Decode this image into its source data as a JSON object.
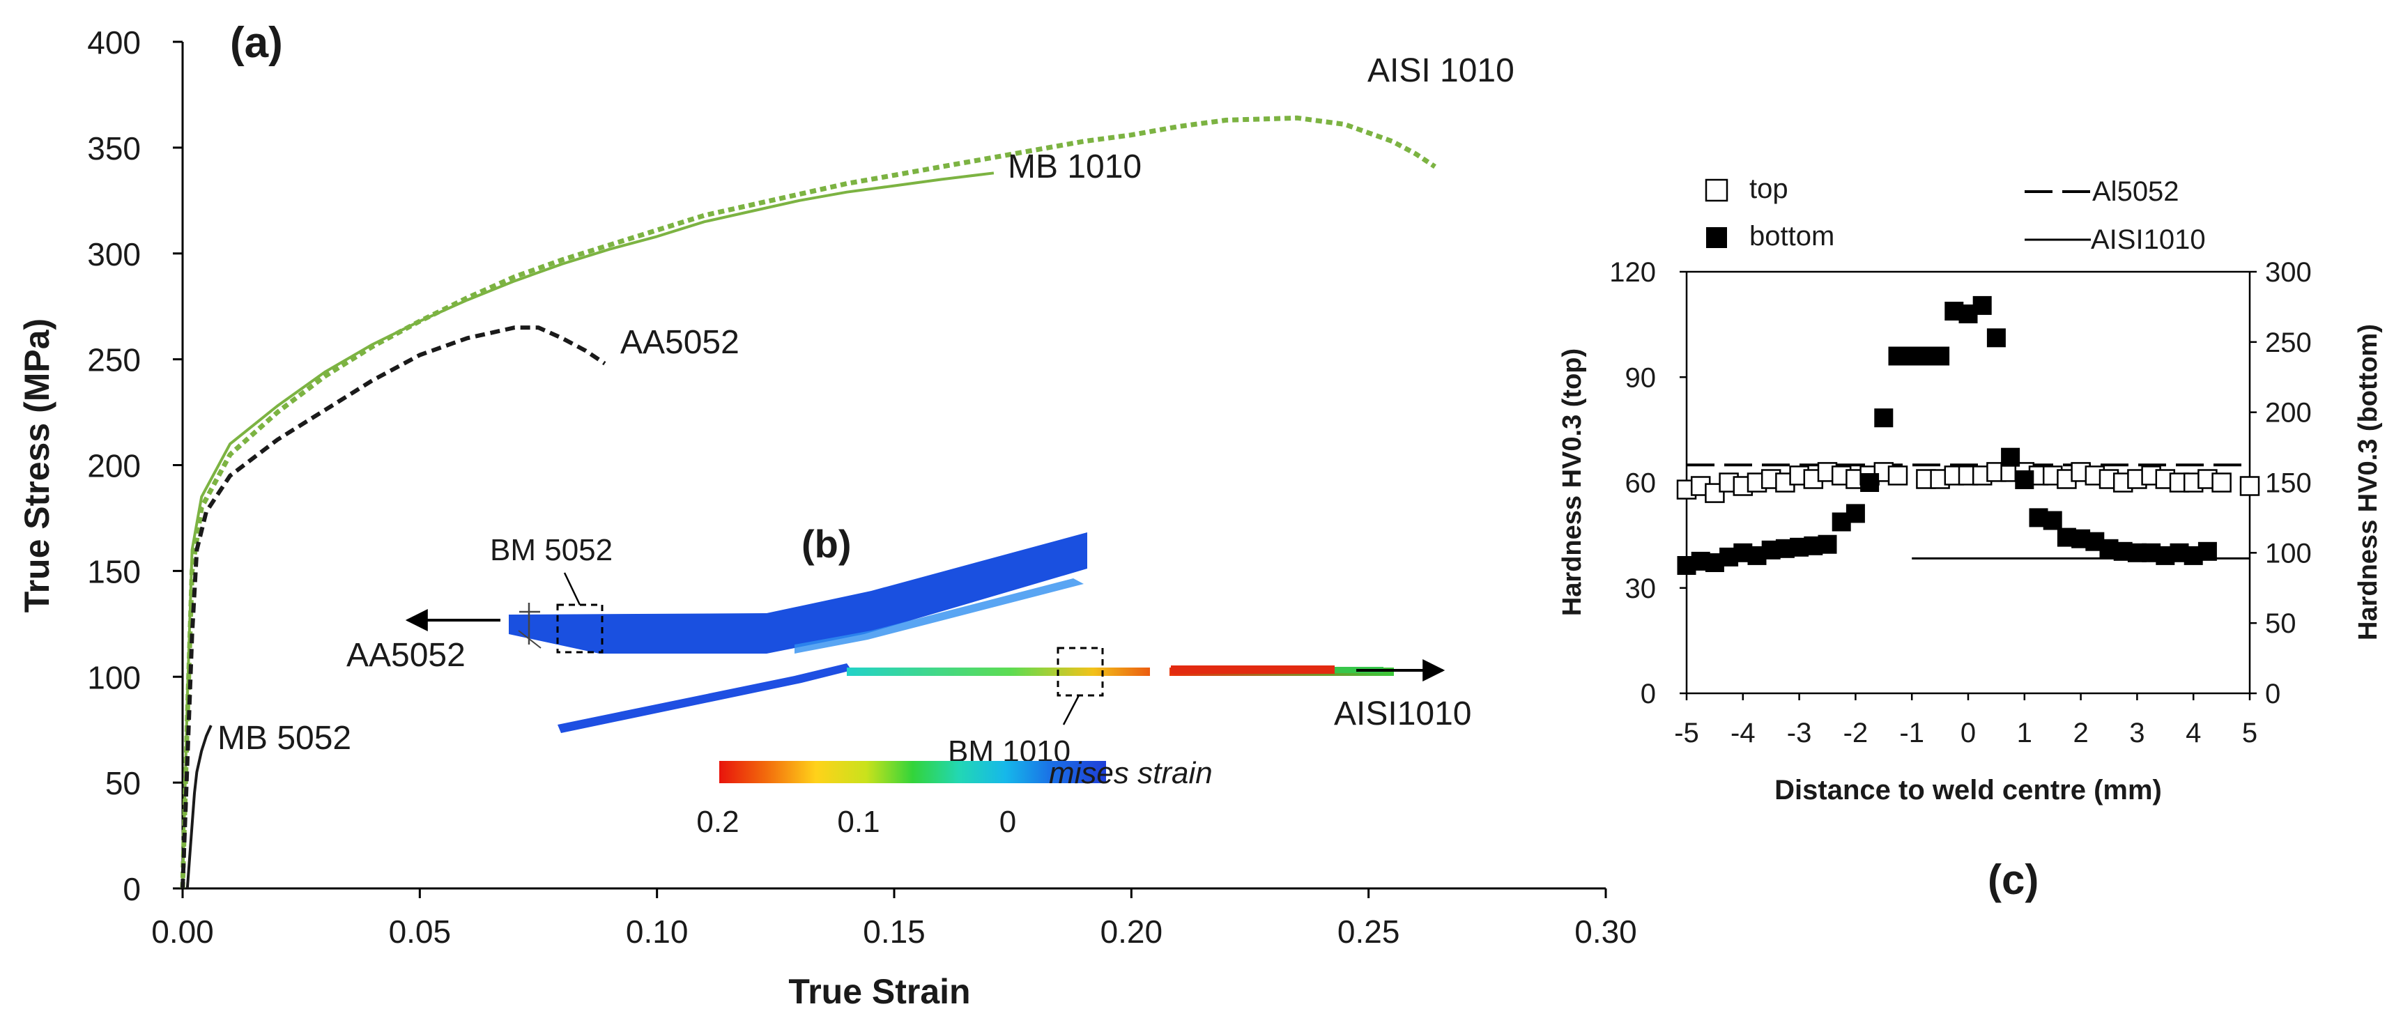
{
  "chart_data": [
    {
      "type": "line",
      "panel_label": "(a)",
      "xlabel": "True Strain",
      "ylabel": "True Stress (MPa)",
      "xlim": [
        0,
        0.3
      ],
      "ylim": [
        0,
        400
      ],
      "x_ticks": [
        "0.00",
        "0.05",
        "0.10",
        "0.15",
        "0.20",
        "0.25",
        "0.30"
      ],
      "y_ticks": [
        "0",
        "50",
        "100",
        "150",
        "200",
        "250",
        "300",
        "350",
        "400"
      ],
      "grid": false,
      "series": [
        {
          "name": "AISI 1010",
          "color": "#7cb342",
          "dash": "dotted",
          "points": [
            [
              0.0,
              0
            ],
            [
              0.001,
              80
            ],
            [
              0.002,
              150
            ],
            [
              0.004,
              180
            ],
            [
              0.01,
              205
            ],
            [
              0.02,
              225
            ],
            [
              0.03,
              242
            ],
            [
              0.04,
              256
            ],
            [
              0.05,
              268
            ],
            [
              0.06,
              279
            ],
            [
              0.07,
              289
            ],
            [
              0.08,
              297
            ],
            [
              0.09,
              304
            ],
            [
              0.1,
              311
            ],
            [
              0.11,
              318
            ],
            [
              0.12,
              323
            ],
            [
              0.13,
              328
            ],
            [
              0.14,
              333
            ],
            [
              0.15,
              337
            ],
            [
              0.16,
              341
            ],
            [
              0.17,
              345
            ],
            [
              0.18,
              349
            ],
            [
              0.19,
              353
            ],
            [
              0.2,
              356
            ],
            [
              0.21,
              360
            ],
            [
              0.22,
              363
            ],
            [
              0.235,
              364
            ],
            [
              0.245,
              361
            ],
            [
              0.255,
              353
            ],
            [
              0.26,
              347
            ],
            [
              0.264,
              341
            ]
          ]
        },
        {
          "name": "MB 1010",
          "color": "#7cb342",
          "dash": "solid",
          "points": [
            [
              0.0,
              0
            ],
            [
              0.001,
              90
            ],
            [
              0.002,
              160
            ],
            [
              0.004,
              185
            ],
            [
              0.01,
              210
            ],
            [
              0.02,
              228
            ],
            [
              0.03,
              244
            ],
            [
              0.04,
              257
            ],
            [
              0.05,
              268
            ],
            [
              0.06,
              278
            ],
            [
              0.07,
              287
            ],
            [
              0.08,
              295
            ],
            [
              0.09,
              302
            ],
            [
              0.1,
              308
            ],
            [
              0.11,
              315
            ],
            [
              0.12,
              320
            ],
            [
              0.13,
              325
            ],
            [
              0.14,
              329
            ],
            [
              0.15,
              332
            ],
            [
              0.16,
              335
            ],
            [
              0.171,
              338
            ]
          ]
        },
        {
          "name": "AA5052",
          "color": "#1a1a1a",
          "dash": "dashed",
          "points": [
            [
              0.0,
              0
            ],
            [
              0.001,
              60
            ],
            [
              0.002,
              120
            ],
            [
              0.003,
              160
            ],
            [
              0.005,
              178
            ],
            [
              0.01,
              195
            ],
            [
              0.02,
              212
            ],
            [
              0.03,
              226
            ],
            [
              0.04,
              240
            ],
            [
              0.05,
              252
            ],
            [
              0.06,
              260
            ],
            [
              0.07,
              265
            ],
            [
              0.075,
              265
            ],
            [
              0.08,
              260
            ],
            [
              0.085,
              254
            ],
            [
              0.089,
              248
            ]
          ]
        },
        {
          "name": "MB 5052",
          "color": "#1a1a1a",
          "dash": "solid",
          "points": [
            [
              0.001,
              0
            ],
            [
              0.0015,
              15
            ],
            [
              0.002,
              30
            ],
            [
              0.0025,
              45
            ],
            [
              0.003,
              55
            ],
            [
              0.004,
              65
            ],
            [
              0.005,
              72
            ],
            [
              0.006,
              77
            ]
          ]
        }
      ],
      "annotations": [
        "AISI 1010",
        "MB 1010",
        "AA5052",
        "MB 5052"
      ]
    },
    {
      "type": "heatmap",
      "panel_label": "(b)",
      "title": "mises strain",
      "colorbar_ticks": [
        "0.2",
        "0.1",
        "0"
      ],
      "colorbar_range": [
        0.2,
        0
      ],
      "labels": [
        "BM 5052",
        "BM 1010",
        "AA5052",
        "AISI1010"
      ]
    },
    {
      "type": "scatter",
      "panel_label": "(c)",
      "xlabel": "Distance to weld centre (mm)",
      "ylabel_left": "Hardness HV0.3 (top)",
      "ylabel_right": "Hardness HV0.3 (bottom)",
      "xlim": [
        -5,
        5
      ],
      "ylim_left": [
        0,
        120
      ],
      "ylim_right": [
        0,
        300
      ],
      "x_ticks": [
        "-5",
        "-4",
        "-3",
        "-2",
        "-1",
        "0",
        "1",
        "2",
        "3",
        "4",
        "5"
      ],
      "y_ticks_left": [
        "0",
        "30",
        "60",
        "90",
        "120"
      ],
      "y_ticks_right": [
        "0",
        "50",
        "100",
        "150",
        "200",
        "250",
        "300"
      ],
      "legend": {
        "top": "top",
        "bottom": "bottom",
        "al": "Al5052",
        "aisi": "AISI1010"
      },
      "series": [
        {
          "name": "top",
          "axis": "left",
          "marker": "open-square",
          "x": [
            -5,
            -4.75,
            -4.5,
            -4.25,
            -4,
            -3.75,
            -3.5,
            -3.25,
            -3,
            -2.75,
            -2.5,
            -2.25,
            -2,
            -1.75,
            -1.5,
            -1.25,
            -0.75,
            -0.5,
            -0.25,
            0,
            0.25,
            0.5,
            0.75,
            1,
            1.25,
            1.5,
            1.75,
            2,
            2.25,
            2.5,
            2.75,
            3,
            3.25,
            3.5,
            3.75,
            4,
            4.25,
            4.5,
            5
          ],
          "y": [
            58,
            59,
            57,
            60,
            59,
            60,
            61,
            60,
            62,
            61,
            63,
            62,
            61,
            62,
            63,
            62,
            61,
            61,
            62,
            62,
            62,
            63,
            63,
            63,
            62,
            62,
            61,
            63,
            62,
            61,
            60,
            61,
            62,
            61,
            60,
            60,
            61,
            60,
            59
          ]
        },
        {
          "name": "bottom",
          "axis": "right",
          "marker": "filled-square",
          "x": [
            -5,
            -4.75,
            -4.5,
            -4.25,
            -4,
            -3.75,
            -3.5,
            -3.25,
            -3,
            -2.75,
            -2.5,
            -2.25,
            -2,
            -1.75,
            -1.5,
            -1.25,
            -1,
            -0.75,
            -0.5,
            -0.25,
            0,
            0.25,
            0.5,
            0.75,
            1,
            1.25,
            1.5,
            1.75,
            2,
            2.25,
            2.5,
            2.75,
            3,
            3.25,
            3.5,
            3.75,
            4,
            4.25
          ],
          "y": [
            91,
            94,
            93,
            97,
            100,
            98,
            102,
            103,
            104,
            105,
            106,
            122,
            128,
            150,
            196,
            240,
            240,
            240,
            240,
            272,
            270,
            276,
            253,
            168,
            152,
            125,
            123,
            111,
            110,
            108,
            103,
            101,
            100,
            100,
            98,
            100,
            98,
            101
          ]
        }
      ],
      "reference_lines": [
        {
          "name": "Al5052",
          "axis": "left",
          "value": 65,
          "x_range": [
            -5,
            5
          ],
          "dash": "dashed"
        },
        {
          "name": "AISI1010",
          "axis": "right",
          "value": 96,
          "x_range": [
            -1,
            5
          ],
          "dash": "solid"
        }
      ]
    }
  ]
}
